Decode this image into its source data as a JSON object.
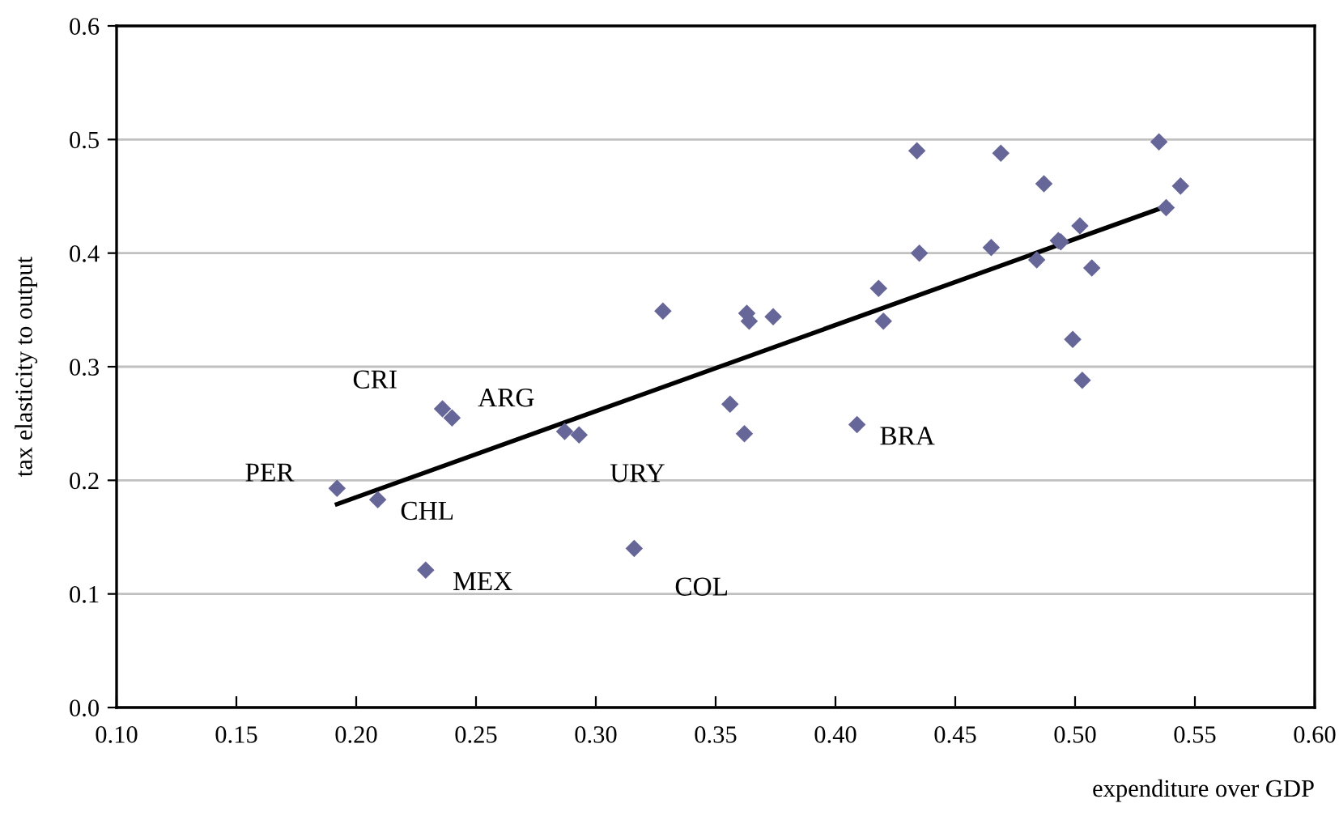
{
  "chart_data": {
    "type": "scatter",
    "xlabel": "expenditure over GDP",
    "ylabel": "tax elasticity to output",
    "xlim": [
      0.1,
      0.6
    ],
    "ylim": [
      0,
      0.6
    ],
    "xticks": [
      {
        "value": 0.1,
        "label": "0.10"
      },
      {
        "value": 0.15,
        "label": "0.15"
      },
      {
        "value": 0.2,
        "label": "0.20"
      },
      {
        "value": 0.25,
        "label": "0.25"
      },
      {
        "value": 0.3,
        "label": "0.30"
      },
      {
        "value": 0.35,
        "label": "0.35"
      },
      {
        "value": 0.4,
        "label": "0.40"
      },
      {
        "value": 0.45,
        "label": "0.45"
      },
      {
        "value": 0.5,
        "label": "0.50"
      },
      {
        "value": 0.55,
        "label": "0.55"
      },
      {
        "value": 0.6,
        "label": "0.60"
      }
    ],
    "yticks": [
      {
        "value": 0,
        "label": "0.0"
      },
      {
        "value": 0.1,
        "label": "0.1"
      },
      {
        "value": 0.2,
        "label": "0.2"
      },
      {
        "value": 0.3,
        "label": "0.3"
      },
      {
        "value": 0.4,
        "label": "0.4"
      },
      {
        "value": 0.5,
        "label": "0.5"
      },
      {
        "value": 0.6,
        "label": "0.6"
      }
    ],
    "grid": "y",
    "marker": "diamond",
    "series": [
      {
        "color": "#666699",
        "x": [
          0.192,
          0.209,
          0.236,
          0.24,
          0.287,
          0.293,
          0.229,
          0.316,
          0.328,
          0.363,
          0.364,
          0.374,
          0.356,
          0.362,
          0.409,
          0.418,
          0.42,
          0.434,
          0.435,
          0.465,
          0.469,
          0.487,
          0.484,
          0.493,
          0.494,
          0.502,
          0.507,
          0.499,
          0.503,
          0.535,
          0.538,
          0.544
        ],
        "values": [
          0.193,
          0.183,
          0.263,
          0.255,
          0.243,
          0.24,
          0.121,
          0.14,
          0.349,
          0.347,
          0.34,
          0.344,
          0.267,
          0.241,
          0.249,
          0.369,
          0.34,
          0.49,
          0.4,
          0.405,
          0.488,
          0.461,
          0.394,
          0.411,
          0.41,
          0.424,
          0.387,
          0.324,
          0.288,
          0.498,
          0.44,
          0.459
        ]
      },
      {
        "type": "line",
        "color": "#000000",
        "marker": "none",
        "x": [
          0.192,
          0.539
        ],
        "values": [
          0.179,
          0.442
        ]
      }
    ],
    "annotations": [
      {
        "text": "PER",
        "x": 0.192,
        "y": 0.193
      },
      {
        "text": "CHL",
        "x": 0.209,
        "y": 0.183
      },
      {
        "text": "CRI",
        "x": 0.236,
        "y": 0.263
      },
      {
        "text": "ARG",
        "x": 0.287,
        "y": 0.243
      },
      {
        "text": "URY",
        "x": 0.293,
        "y": 0.24
      },
      {
        "text": "MEX",
        "x": 0.229,
        "y": 0.121
      },
      {
        "text": "COL",
        "x": 0.316,
        "y": 0.14
      },
      {
        "text": "BRA",
        "x": 0.409,
        "y": 0.249
      }
    ]
  }
}
